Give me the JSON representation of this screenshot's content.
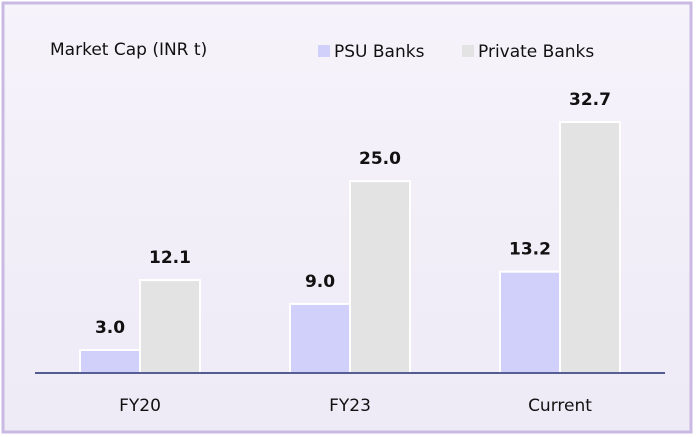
{
  "chart_data": {
    "type": "bar",
    "title": "Market Cap (INR t)",
    "categories": [
      "FY20",
      "FY23",
      "Current"
    ],
    "series": [
      {
        "name": "PSU Banks",
        "color": "#d0d0fb",
        "values": [
          3.0,
          9.0,
          13.2
        ],
        "value_labels": [
          "3.0",
          "9.0",
          "13.2"
        ]
      },
      {
        "name": "Private Banks",
        "color": "#e3e3e3",
        "values": [
          12.1,
          25.0,
          32.7
        ],
        "value_labels": [
          "12.1",
          "25.0",
          "32.7"
        ]
      }
    ],
    "ylim": [
      0,
      40
    ],
    "legend": "top"
  }
}
